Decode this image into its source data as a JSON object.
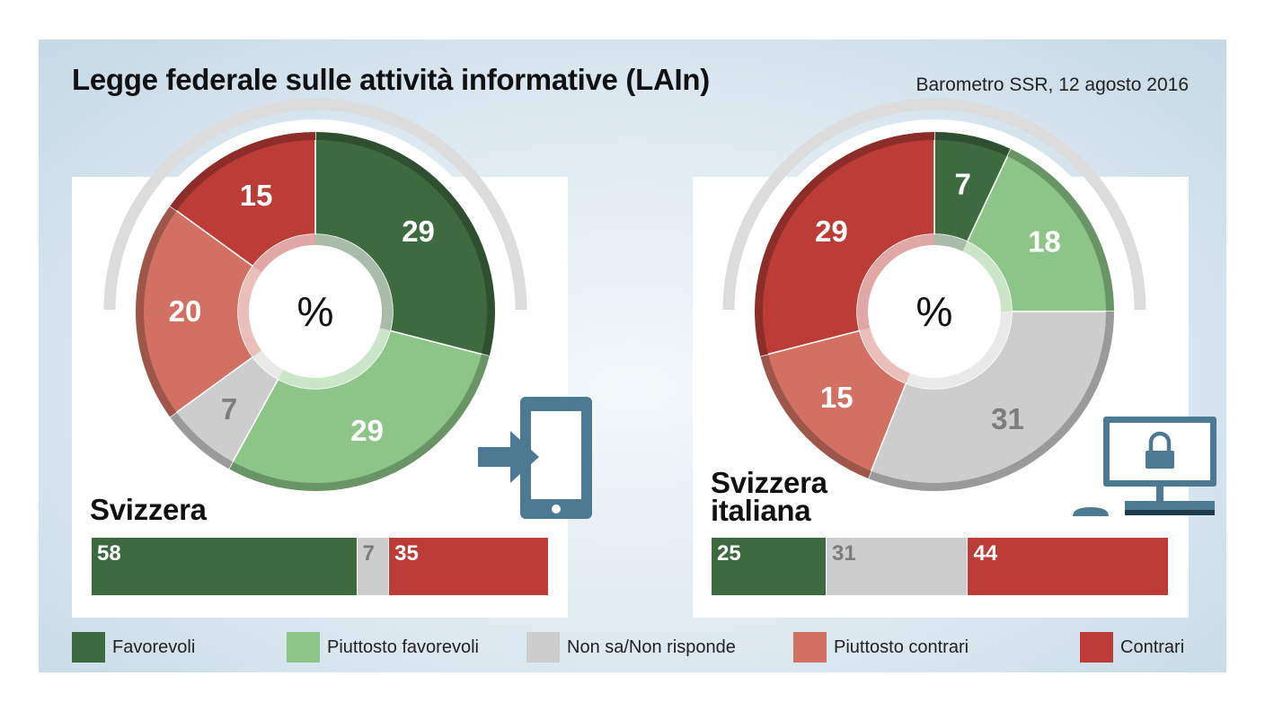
{
  "header": {
    "title": "Legge federale sulle attività informative (LAIn)",
    "source": "Barometro SSR, 12 agosto 2016"
  },
  "colors": {
    "favorevoli": "#3e6a40",
    "piuttosto_favorevoli": "#8cc587",
    "non_sa": "#cdcdcd",
    "piuttosto_contrari": "#d27163",
    "contrari": "#bc3c37"
  },
  "legend": [
    {
      "label": "Favorevoli",
      "color": "#3e6a40"
    },
    {
      "label": "Piuttosto favorevoli",
      "color": "#8cc587"
    },
    {
      "label": "Non sa/Non risponde",
      "color": "#cdcdcd"
    },
    {
      "label": "Piuttosto contrari",
      "color": "#d27163"
    },
    {
      "label": "Contrari",
      "color": "#bc3c37"
    }
  ],
  "icons": [
    "phone-login-icon",
    "locked-computer-icon"
  ],
  "chart_data": [
    {
      "type": "pie",
      "region": "Svizzera",
      "center_label": "%",
      "categories": [
        "Favorevoli",
        "Piuttosto favorevoli",
        "Non sa/Non risponde",
        "Piuttosto contrari",
        "Contrari"
      ],
      "values": [
        29,
        29,
        7,
        20,
        15
      ]
    },
    {
      "type": "bar",
      "region": "Svizzera",
      "categories": [
        "Favorevoli",
        "Non sa/Non risponde",
        "Contrari"
      ],
      "values": [
        58,
        7,
        35
      ]
    },
    {
      "type": "pie",
      "region": "Svizzera italiana",
      "center_label": "%",
      "categories": [
        "Favorevoli",
        "Piuttosto favorevoli",
        "Non sa/Non risponde",
        "Piuttosto contrari",
        "Contrari"
      ],
      "values": [
        7,
        18,
        31,
        15,
        29
      ]
    },
    {
      "type": "bar",
      "region": "Svizzera italiana",
      "categories": [
        "Favorevoli",
        "Non sa/Non risponde",
        "Contrari"
      ],
      "values": [
        25,
        31,
        44
      ]
    }
  ]
}
